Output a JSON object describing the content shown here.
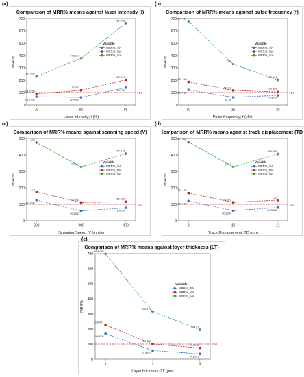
{
  "chart_data": [
    {
      "panel": "(a)",
      "type": "line",
      "title": "Comparison of MRR% means against laser intensity (I)",
      "xlabel": "Laser Intensity; I (%)",
      "ylabel": "MRR%",
      "categories": [
        "75",
        "80",
        "85"
      ],
      "ylim": [
        0,
        700
      ],
      "yticks": [
        0,
        100,
        200,
        300,
        400,
        500,
        600,
        700
      ],
      "reference": {
        "value": 100,
        "label": "100"
      },
      "legend_title": "Variable",
      "series": [
        {
          "name": "MRR%_TiA",
          "color": "#3a6fc4",
          "marker": "circle",
          "values": [
            66.2965,
            60.6333,
            139.706
          ],
          "labels": [
            "66.2965",
            "60.6333",
            "139.706"
          ]
        },
        {
          "name": "MRR%_NiA",
          "color": "#b52a2a",
          "marker": "square",
          "values": [
            88.7255,
            117.987,
            202.947
          ],
          "labels": [
            "88.7255",
            "117.987",
            "202.947"
          ]
        },
        {
          "name": "MRR%_AlA",
          "color": "#2e9e3c",
          "marker": "diamond",
          "values": [
            231.863,
            378.167,
            661.275
          ],
          "labels": [
            "231.863",
            "378.167",
            "661.275"
          ]
        }
      ]
    },
    {
      "panel": "(b)",
      "type": "line",
      "title": "Comparison of MRR% means against pulse frequency (f)",
      "xlabel": "Pulse frequency; f (kHz)",
      "ylabel": "MRR%",
      "categories": [
        "10",
        "15",
        "20"
      ],
      "ylim": [
        0,
        700
      ],
      "yticks": [
        0,
        100,
        200,
        300,
        400,
        500,
        600,
        700
      ],
      "reference": {
        "value": 100,
        "label": "100"
      },
      "legend_title": "Variable",
      "series": [
        {
          "name": "MRR%_TiA",
          "color": "#3a6fc4",
          "marker": "circle",
          "values": [
            121.569,
            61.26,
            77.3412
          ],
          "labels": [
            "121.569",
            "61.26",
            "77.3412"
          ]
        },
        {
          "name": "MRR%_NiA",
          "color": "#b52a2a",
          "marker": "square",
          "values": [
            185.784,
            117.32,
            103.882
          ],
          "labels": [
            "185.784",
            "117.32",
            "103.882"
          ]
        },
        {
          "name": "MRR%_AlA",
          "color": "#2e9e3c",
          "marker": "diamond",
          "values": [
            677.451,
            330,
            202.941
          ],
          "labels": [
            "677.451",
            "330",
            "202.941"
          ]
        }
      ]
    },
    {
      "panel": "(c)",
      "type": "line",
      "title": "Comparison of MRR% means against scanning speed (V)",
      "xlabel": "Scanning Speed; V (mm/s)",
      "ylabel": "MRR%",
      "categories": [
        "200",
        "300",
        "400"
      ],
      "ylim": [
        0,
        500
      ],
      "yticks": [
        0,
        100,
        200,
        300,
        400,
        500
      ],
      "reference": {
        "value": 100,
        "label": "100"
      },
      "legend_title": "Variable",
      "series": [
        {
          "name": "MRR%_TiA",
          "color": "#3a6fc4",
          "marker": "circle",
          "values": [
            125.039,
            59.5883,
            78.4254
          ],
          "labels": [
            "125.039",
            "59.5883",
            "78.4254"
          ]
        },
        {
          "name": "MRR%_NiA",
          "color": "#b52a2a",
          "marker": "square",
          "values": [
            175,
            110.961,
            115.608
          ],
          "labels": [
            "175",
            "110.961",
            "115.608"
          ]
        },
        {
          "name": "MRR%_AlA",
          "color": "#2e9e3c",
          "marker": "diamond",
          "values": [
            475,
            327.157,
            407.843
          ],
          "labels": [
            "475",
            "327.157",
            "407.843"
          ]
        }
      ]
    },
    {
      "panel": "(d)",
      "type": "line",
      "title": "Comparison of MRR% means against track displacement (TD)",
      "xlabel": "Track Displacement; TD (μm)",
      "ylabel": "MRR%",
      "categories": [
        "8",
        "10",
        "12"
      ],
      "ylim": [
        0,
        500
      ],
      "yticks": [
        0,
        100,
        200,
        300,
        400,
        500
      ],
      "reference": {
        "value": 100,
        "label": "100"
      },
      "legend_title": "Variable",
      "series": [
        {
          "name": "MRR%_TiA",
          "color": "#3a6fc4",
          "marker": "circle",
          "values": [
            119.608,
            60.8334,
            80.3922
          ],
          "labels": [
            "119.608",
            "60.8334",
            "80.3922"
          ]
        },
        {
          "name": "MRR%_NiA",
          "color": "#b52a2a",
          "marker": "square",
          "values": [
            168.137,
            111.863,
            125
          ],
          "labels": [
            "168.137",
            "111.863",
            "125"
          ]
        },
        {
          "name": "MRR%_AlA",
          "color": "#2e9e3c",
          "marker": "diamond",
          "values": [
            477.941,
            327.5,
            405.392
          ],
          "labels": [
            "477.941",
            "327.5",
            "405.392"
          ]
        }
      ]
    },
    {
      "panel": "(e)",
      "type": "line",
      "title": "Comparison of MRR% means against layer thickness (LT)",
      "xlabel": "Layer thickness; LT (μm)",
      "ylabel": "MRR%",
      "categories": [
        "1",
        "2",
        "3"
      ],
      "ylim": [
        0,
        700
      ],
      "yticks": [
        0,
        100,
        200,
        300,
        400,
        500,
        600,
        700
      ],
      "reference": {
        "value": 100,
        "label": "100"
      },
      "legend_title": "Variable",
      "series": [
        {
          "name": "MRR%_TiA",
          "color": "#3a6fc4",
          "marker": "circle",
          "values": [
            169.608,
            57.0833,
            34.8039
          ],
          "labels": [
            "169.608",
            "57.0833",
            "34.8039"
          ]
        },
        {
          "name": "MRR%_NiA",
          "color": "#b52a2a",
          "marker": "square",
          "values": [
            226.471,
            100.735,
            74.5098
          ],
          "labels": [
            "226.471",
            "100.735",
            "74.5098"
          ]
        },
        {
          "name": "MRR%_AlA",
          "color": "#2e9e3c",
          "marker": "diamond",
          "values": [
            698.039,
            315.475,
            195.51
          ],
          "labels": [
            "698.039",
            "315.475",
            "195.51"
          ]
        }
      ]
    }
  ]
}
